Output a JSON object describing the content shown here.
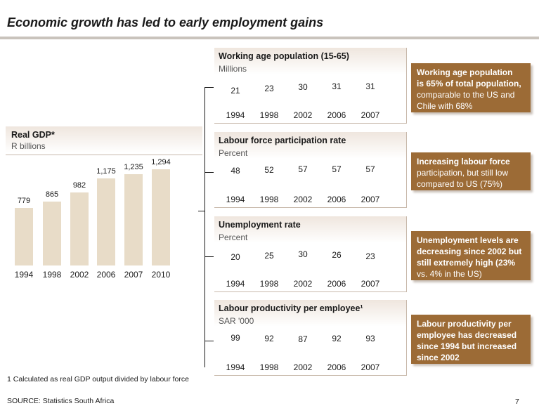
{
  "page_title": "Economic growth has led to early employment gains",
  "chart_data": [
    {
      "type": "bar",
      "title": "Real GDP*",
      "subtitle": "R billions",
      "categories": [
        "1994",
        "1998",
        "2002",
        "2006",
        "2007",
        "2010"
      ],
      "values": [
        779,
        865,
        982,
        1175,
        1235,
        1294
      ],
      "value_labels": [
        "779",
        "865",
        "982",
        "1,175",
        "1,235",
        "1,294"
      ],
      "bar_color": "#e8dcc8"
    },
    {
      "type": "table",
      "title": "Working age population (15-65)",
      "subtitle": "Millions",
      "categories": [
        "1994",
        "1998",
        "2002",
        "2006",
        "2007"
      ],
      "values": [
        21,
        23,
        30,
        31,
        31
      ]
    },
    {
      "type": "table",
      "title": "Labour force participation rate",
      "subtitle": "Percent",
      "categories": [
        "1994",
        "1998",
        "2002",
        "2006",
        "2007"
      ],
      "values": [
        48,
        52,
        57,
        57,
        57
      ]
    },
    {
      "type": "table",
      "title": "Unemployment rate",
      "subtitle": "Percent",
      "categories": [
        "1994",
        "1998",
        "2002",
        "2006",
        "2007"
      ],
      "values": [
        20,
        25,
        30,
        26,
        23
      ]
    },
    {
      "type": "table",
      "title": "Labour productivity per employee¹",
      "subtitle": "SAR '000",
      "categories": [
        "1994",
        "1998",
        "2002",
        "2006",
        "2007"
      ],
      "values": [
        99,
        92,
        87,
        92,
        93
      ]
    }
  ],
  "callouts": [
    {
      "line1": "Working age population",
      "line2": "is 65% of total population,",
      "line3": "comparable to the US and",
      "line4": "Chile with 68%"
    },
    {
      "line1": "Increasing labour force",
      "line2": "participation, but still low",
      "line3": "compared to US (75%)"
    },
    {
      "line1": "Unemployment levels are",
      "line2": "decreasing since 2002 but",
      "line3": "still extremely high (23%",
      "line4": "vs. 4% in the US)"
    },
    {
      "line1": "Labour productivity per",
      "line2": "employee has decreased",
      "line3": "since 1994 but increased",
      "line4": "since 2002"
    }
  ],
  "footnote": "1 Calculated as real GDP output divided by labour force",
  "source": "SOURCE: Statistics South Africa",
  "page_number": "7",
  "colors": {
    "callout": "#9c6b36",
    "bar": "#e8dcc8",
    "panel_top": "#efe6de",
    "panel_border": "#c8b9ab"
  }
}
